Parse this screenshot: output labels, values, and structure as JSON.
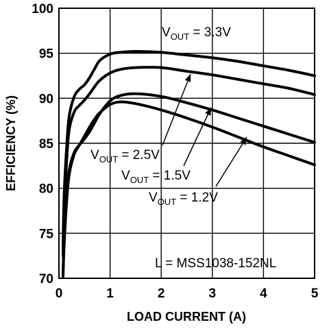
{
  "chart_data": {
    "type": "line",
    "xlabel": "LOAD CURRENT (A)",
    "ylabel": "EFFICIENCY (%)",
    "xlim": [
      0,
      5
    ],
    "ylim": [
      70,
      100
    ],
    "xticks": [
      "0",
      "1",
      "2",
      "3",
      "4",
      "5"
    ],
    "yticks": [
      "70",
      "75",
      "80",
      "85",
      "90",
      "95",
      "100"
    ],
    "grid": true,
    "legend": "none",
    "note": "L = MSS1038-152NL",
    "series": [
      {
        "name": "VOUT = 3.3V",
        "label_main": "V",
        "label_sub": "OUT",
        "label_tail": " = 3.3V",
        "x": [
          0.08,
          0.1,
          0.15,
          0.2,
          0.3,
          0.4,
          0.5,
          0.6,
          0.7,
          0.8,
          1.0,
          1.2,
          1.5,
          2.0,
          2.5,
          3.0,
          3.5,
          4.0,
          4.5,
          5.0
        ],
        "y": [
          73.5,
          79.0,
          84.5,
          88.0,
          90.2,
          91.0,
          91.5,
          92.3,
          93.3,
          94.2,
          94.9,
          95.1,
          95.2,
          95.1,
          94.8,
          94.5,
          94.1,
          93.6,
          93.1,
          92.5
        ]
      },
      {
        "name": "VOUT = 2.5V",
        "label_main": "V",
        "label_sub": "OUT",
        "label_tail": " = 2.5V",
        "x": [
          0.08,
          0.1,
          0.15,
          0.2,
          0.3,
          0.4,
          0.5,
          0.6,
          0.7,
          0.8,
          1.0,
          1.2,
          1.5,
          2.0,
          2.5,
          3.0,
          3.5,
          4.0,
          4.5,
          5.0
        ],
        "y": [
          72.5,
          77.5,
          83.0,
          86.5,
          88.5,
          89.2,
          89.8,
          90.5,
          91.3,
          92.0,
          92.8,
          93.2,
          93.4,
          93.4,
          93.0,
          92.6,
          92.1,
          91.6,
          91.1,
          90.4
        ]
      },
      {
        "name": "VOUT = 1.5V",
        "label_main": "V",
        "label_sub": "OUT",
        "label_tail": " = 1.5V",
        "x": [
          0.08,
          0.1,
          0.15,
          0.2,
          0.3,
          0.4,
          0.5,
          0.6,
          0.7,
          0.8,
          1.0,
          1.2,
          1.5,
          2.0,
          2.5,
          3.0,
          3.5,
          4.0,
          4.5,
          5.0
        ],
        "y": [
          70.5,
          74.0,
          79.0,
          82.0,
          84.0,
          84.8,
          85.5,
          86.3,
          87.3,
          88.3,
          89.7,
          90.3,
          90.5,
          90.2,
          89.5,
          88.7,
          87.8,
          86.9,
          86.0,
          85.1
        ]
      },
      {
        "name": "VOUT = 1.2V",
        "label_main": "V",
        "label_sub": "OUT",
        "label_tail": " = 1.2V",
        "x": [
          0.08,
          0.1,
          0.15,
          0.2,
          0.3,
          0.4,
          0.5,
          0.6,
          0.7,
          0.8,
          1.0,
          1.2,
          1.5,
          2.0,
          2.5,
          3.0,
          3.5,
          4.0,
          4.5,
          5.0
        ],
        "y": [
          70.2,
          73.5,
          78.5,
          81.5,
          83.8,
          84.8,
          85.8,
          86.8,
          87.7,
          88.4,
          89.3,
          89.6,
          89.4,
          88.7,
          87.8,
          86.8,
          85.7,
          84.6,
          83.6,
          82.6
        ]
      }
    ]
  }
}
